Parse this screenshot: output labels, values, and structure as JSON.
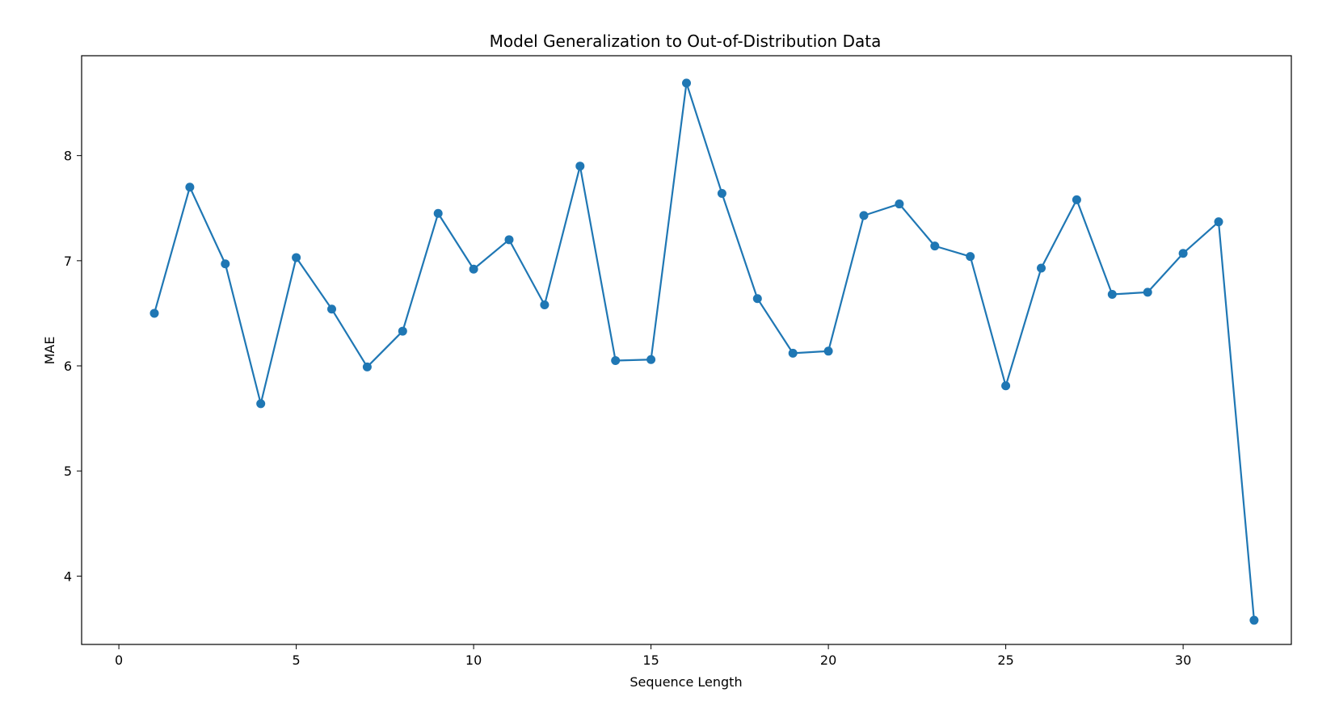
{
  "chart_data": {
    "type": "line",
    "title": "Model Generalization to Out-of-Distribution Data",
    "xlabel": "Sequence Length",
    "ylabel": "MAE",
    "xlim": [
      -1.05,
      33.05
    ],
    "ylim": [
      3.35,
      8.95
    ],
    "xticks": [
      0,
      5,
      10,
      15,
      20,
      25,
      30
    ],
    "yticks": [
      4,
      5,
      6,
      7,
      8
    ],
    "grid": false,
    "line_color": "#1f77b4",
    "marker": "circle",
    "x": [
      1,
      2,
      3,
      4,
      5,
      6,
      7,
      8,
      9,
      10,
      11,
      12,
      13,
      14,
      15,
      16,
      17,
      18,
      19,
      20,
      21,
      22,
      23,
      24,
      25,
      26,
      27,
      28,
      29,
      30,
      31,
      32
    ],
    "series": [
      {
        "values": [
          6.5,
          7.7,
          6.97,
          5.64,
          7.03,
          6.54,
          5.99,
          6.33,
          7.45,
          6.92,
          7.2,
          6.58,
          7.9,
          6.05,
          6.06,
          8.69,
          7.64,
          6.64,
          6.12,
          6.14,
          7.43,
          7.54,
          7.14,
          7.04,
          5.81,
          6.93,
          7.58,
          6.68,
          6.7,
          7.07,
          7.37,
          3.58
        ]
      }
    ]
  }
}
